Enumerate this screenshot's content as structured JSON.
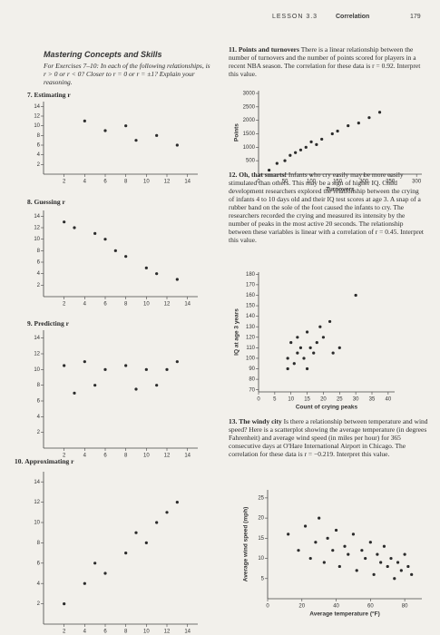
{
  "header": {
    "lesson": "LESSON 3.3",
    "title": "Correlation",
    "page": "179"
  },
  "section": {
    "heading": "Mastering Concepts and Skills",
    "instructions": "For Exercises 7–10: In each of the following relationships, is r > 0 or r < 0? Closer to r = 0 or r = ±1? Explain your reasoning."
  },
  "exercises": [
    {
      "number": "7.",
      "title": "Estimating r",
      "plot": {
        "xlim": [
          0,
          15
        ],
        "ylim": [
          0,
          15
        ],
        "xticks": [
          2,
          4,
          6,
          8,
          10,
          12,
          14
        ],
        "yticks": [
          2,
          4,
          6,
          8,
          10,
          12,
          14
        ],
        "x": [
          4,
          6,
          8,
          9,
          11,
          13
        ],
        "y": [
          11,
          9,
          10,
          7,
          8,
          6
        ]
      }
    },
    {
      "number": "8.",
      "title": "Guessing r",
      "plot": {
        "xlim": [
          0,
          15
        ],
        "ylim": [
          0,
          15
        ],
        "xticks": [
          2,
          4,
          6,
          8,
          10,
          12,
          14
        ],
        "yticks": [
          2,
          4,
          6,
          8,
          10,
          12,
          14
        ],
        "x": [
          2,
          3,
          5,
          6,
          7,
          8,
          10,
          11,
          13
        ],
        "y": [
          13,
          12,
          11,
          10,
          8,
          7,
          5,
          4,
          3
        ]
      }
    },
    {
      "number": "9.",
      "title": "Predicting r",
      "plot": {
        "xlim": [
          0,
          15
        ],
        "ylim": [
          0,
          15
        ],
        "xticks": [
          2,
          4,
          6,
          8,
          10,
          12,
          14
        ],
        "yticks": [
          2,
          4,
          6,
          8,
          10,
          12,
          14
        ],
        "x": [
          2,
          3,
          4,
          5,
          6,
          8,
          9,
          10,
          11,
          12,
          13
        ],
        "y": [
          10.5,
          7,
          11,
          8,
          10,
          10.5,
          7.5,
          10,
          8,
          10,
          11
        ]
      }
    },
    {
      "number": "10.",
      "title": "Approximating r",
      "plot": {
        "xlim": [
          0,
          15
        ],
        "ylim": [
          0,
          15
        ],
        "xticks": [
          2,
          4,
          6,
          8,
          10,
          12,
          14
        ],
        "yticks": [
          2,
          4,
          6,
          8,
          10,
          12,
          14
        ],
        "x": [
          2,
          4,
          5,
          6,
          8,
          9,
          10,
          11,
          12,
          13
        ],
        "y": [
          2,
          4,
          6,
          5,
          7,
          9,
          8,
          10,
          11,
          12
        ]
      }
    },
    {
      "number": "11.",
      "title": "Points and turnovers",
      "text": "There is a linear relationship between the number of turnovers and the number of points scored for players in a recent NBA season. The correlation for these data is r = 0.92. Interpret this value.",
      "plot": {
        "xlabel": "Turnovers",
        "ylabel": "Points",
        "xlim": [
          0,
          310
        ],
        "ylim": [
          0,
          3100
        ],
        "xticks": [
          0,
          50,
          100,
          150,
          200,
          250,
          300
        ],
        "yticks": [
          500,
          1000,
          1500,
          2000,
          2500,
          3000
        ],
        "x": [
          20,
          35,
          50,
          60,
          70,
          80,
          90,
          100,
          110,
          120,
          140,
          150,
          170,
          190,
          210,
          230
        ],
        "y": [
          150,
          400,
          500,
          700,
          800,
          900,
          1000,
          1200,
          1100,
          1300,
          1500,
          1600,
          1800,
          1900,
          2100,
          2300
        ]
      }
    },
    {
      "number": "12.",
      "title": "Oh, that smarts!",
      "text": "Infants who cry easily may be more easily stimulated than others. This may be a sign of higher IQ. Child development researchers explored the relationship between the crying of infants 4 to 10 days old and their IQ test scores at age 3. A snap of a rubber band on the sole of the foot caused the infants to cry. The researchers recorded the crying and measured its intensity by the number of peaks in the most active 20 seconds. The relationship between these variables is linear with a correlation of r = 0.45. Interpret this value.",
      "plot": {
        "xlabel": "Count of crying peaks",
        "ylabel": "IQ at age 3 years",
        "xlim": [
          0,
          42
        ],
        "ylim": [
          68,
          182
        ],
        "xticks": [
          0,
          5,
          10,
          15,
          20,
          25,
          30,
          35,
          40
        ],
        "yticks": [
          70,
          80,
          90,
          100,
          110,
          120,
          130,
          140,
          150,
          160,
          170,
          180
        ],
        "x": [
          9,
          10,
          11,
          12,
          12,
          13,
          14,
          15,
          15,
          16,
          17,
          18,
          19,
          20,
          22,
          23,
          25,
          9,
          30
        ],
        "y": [
          100,
          115,
          95,
          105,
          120,
          110,
          100,
          125,
          90,
          110,
          105,
          115,
          130,
          120,
          135,
          105,
          110,
          90,
          160
        ]
      }
    },
    {
      "number": "13.",
      "title": "The windy city",
      "text": "Is there a relationship between temperature and wind speed? Here is a scatterplot showing the average temperature (in degrees Fahrenheit) and average wind speed (in miles per hour) for 365 consecutive days at O'Hare International Airport in Chicago. The correlation for these data is r = −0.219. Interpret this value.",
      "plot": {
        "xlabel": "Average temperature (°F)",
        "ylabel": "Average wind speed (mph)",
        "xlim": [
          0,
          90
        ],
        "ylim": [
          0,
          27
        ],
        "xticks": [
          0,
          20,
          40,
          60,
          80
        ],
        "yticks": [
          5,
          10,
          15,
          20,
          25
        ],
        "x": [
          12,
          18,
          22,
          25,
          28,
          30,
          33,
          35,
          38,
          40,
          42,
          45,
          47,
          50,
          52,
          55,
          57,
          60,
          62,
          64,
          66,
          68,
          70,
          72,
          74,
          76,
          78,
          80,
          82,
          84
        ],
        "y": [
          16,
          12,
          18,
          10,
          14,
          20,
          9,
          15,
          12,
          17,
          8,
          13,
          11,
          16,
          7,
          12,
          10,
          14,
          6,
          11,
          9,
          13,
          8,
          10,
          5,
          9,
          7,
          11,
          8,
          6
        ]
      }
    }
  ]
}
